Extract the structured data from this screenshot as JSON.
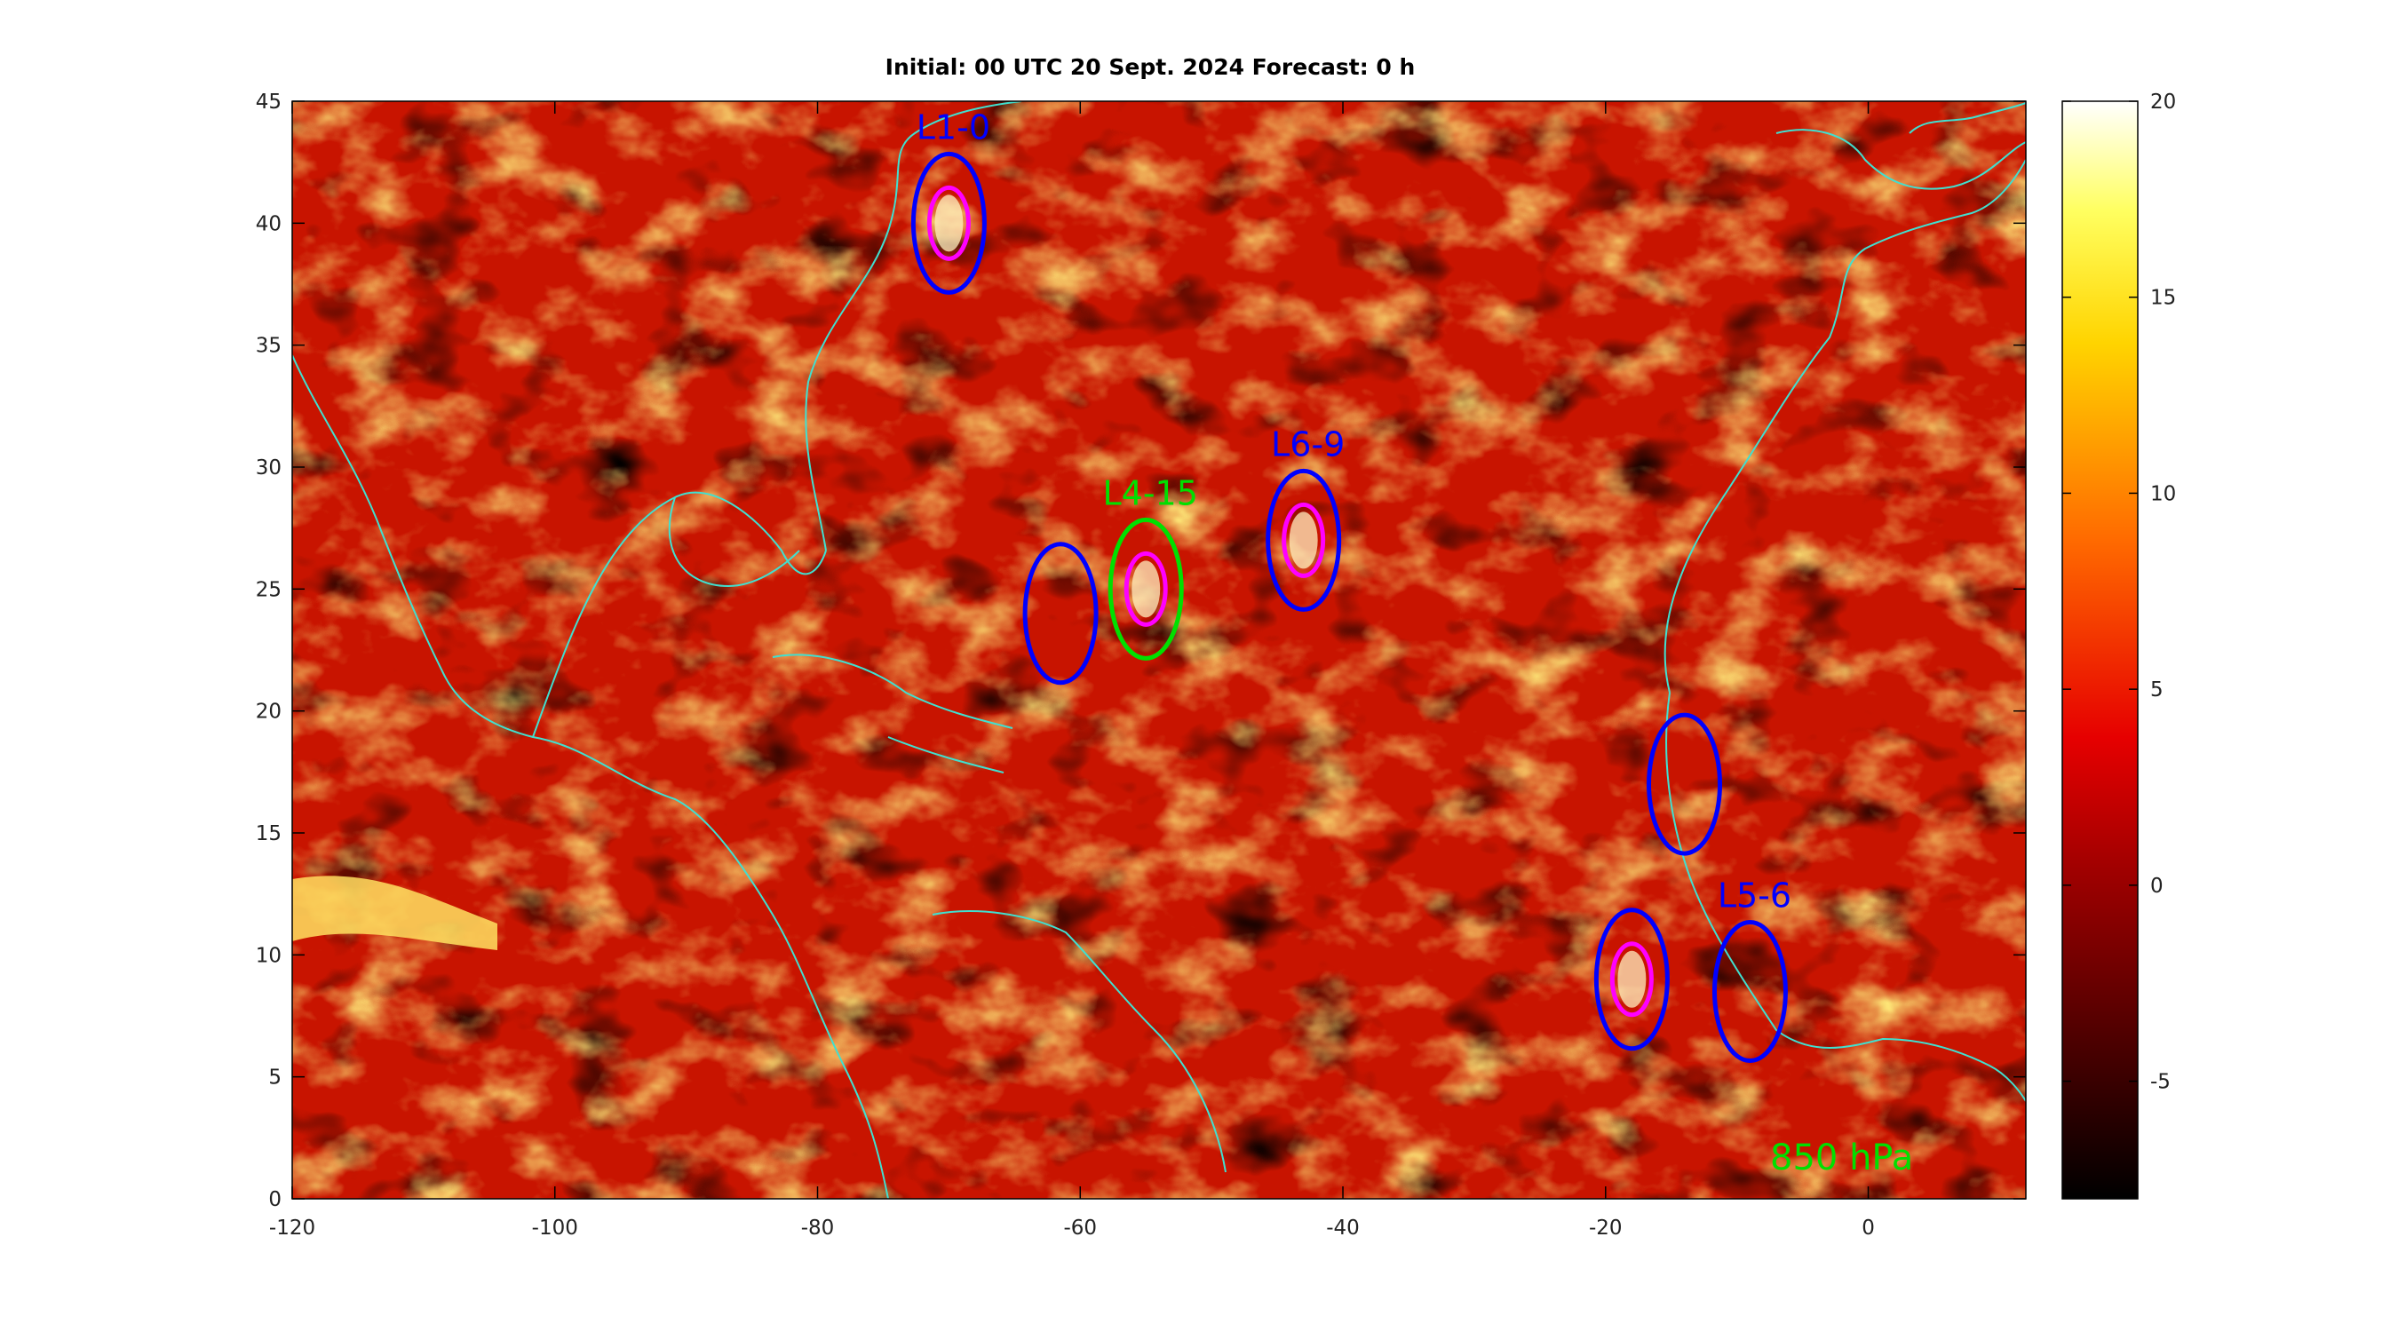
{
  "title": "Initial: 00 UTC 20 Sept. 2024 Forecast: 0 h",
  "level_label": "850 hPa",
  "map": {
    "lon_range": [
      -120,
      12
    ],
    "lat_range": [
      0,
      45
    ],
    "x_ticks": [
      "-120",
      "-100",
      "-80",
      "-60",
      "-40",
      "-20",
      "0"
    ],
    "y_ticks": [
      "0",
      "5",
      "10",
      "15",
      "20",
      "25",
      "30",
      "35",
      "40",
      "45"
    ],
    "coastline_color": "#40e0d0",
    "colormap": "hot"
  },
  "colorbar": {
    "range": [
      -8,
      20
    ],
    "ticks": [
      "-5",
      "0",
      "5",
      "10",
      "15",
      "20"
    ]
  },
  "systems": [
    {
      "label": "L1-0",
      "label_color": "#0000ff",
      "marks": [
        {
          "color": "#0000ff",
          "lon": -70,
          "lat": 40
        },
        {
          "color": "#ff00ff",
          "lon": -70,
          "lat": 40
        }
      ]
    },
    {
      "label": "L4-15",
      "label_color": "#00e000",
      "marks": [
        {
          "color": "#00e000",
          "lon": -55,
          "lat": 25
        },
        {
          "color": "#ff00ff",
          "lon": -55,
          "lat": 25
        }
      ]
    },
    {
      "label": "L6-9",
      "label_color": "#0000ff",
      "marks": [
        {
          "color": "#0000ff",
          "lon": -43,
          "lat": 27
        },
        {
          "color": "#ff00ff",
          "lon": -43,
          "lat": 27
        }
      ]
    },
    {
      "label": "L5-6",
      "label_color": "#0000ff",
      "marks": [
        {
          "color": "#0000ff",
          "lon": -9,
          "lat": 8.5
        }
      ]
    },
    {
      "label": "",
      "label_color": "#0000ff",
      "marks": [
        {
          "color": "#0000ff",
          "lon": -61.5,
          "lat": 24
        }
      ]
    },
    {
      "label": "",
      "label_color": "#0000ff",
      "marks": [
        {
          "color": "#0000ff",
          "lon": -14,
          "lat": 17
        }
      ]
    },
    {
      "label": "",
      "label_color": "#0000ff",
      "marks": [
        {
          "color": "#0000ff",
          "lon": -18,
          "lat": 9
        },
        {
          "color": "#ff00ff",
          "lon": -18,
          "lat": 9
        }
      ]
    }
  ]
}
